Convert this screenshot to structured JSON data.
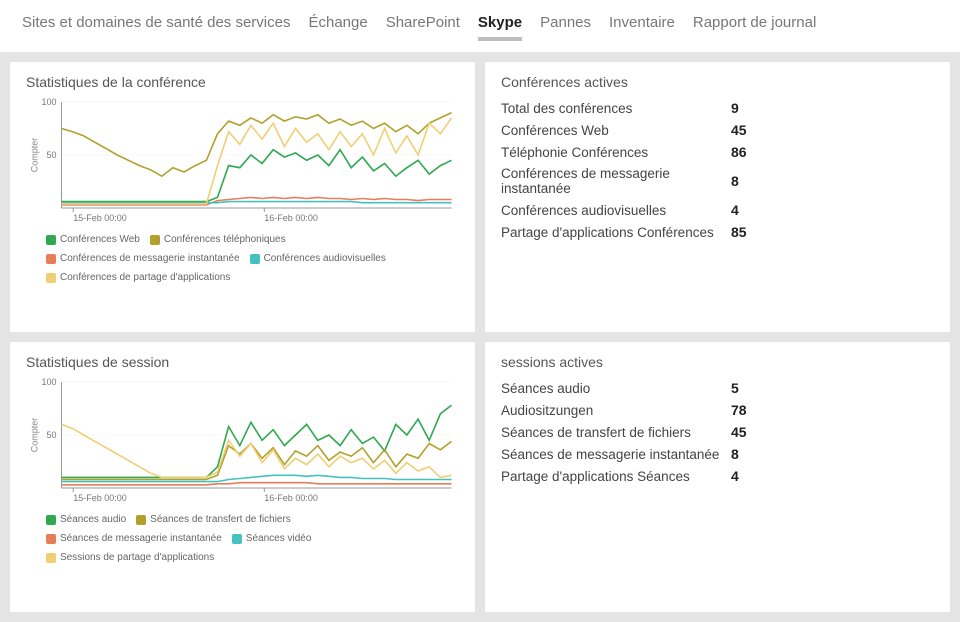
{
  "tabs": [
    {
      "label": "Sites et domaines de santé des services",
      "active": false
    },
    {
      "label": "Échange",
      "active": false
    },
    {
      "label": "SharePoint",
      "active": false
    },
    {
      "label": "Skype",
      "active": true
    },
    {
      "label": "Pannes",
      "active": false
    },
    {
      "label": "Inventaire",
      "active": false
    },
    {
      "label": "Rapport de journal",
      "active": false
    }
  ],
  "chart1": {
    "title": "Statistiques de la conférence",
    "type": "line",
    "ylabel": "Compter",
    "ylim": [
      0,
      100
    ],
    "ytick_step": 50,
    "xticks": [
      "15-Feb 00:00",
      "16-Feb 00:00"
    ],
    "xtick_positions": [
      0.03,
      0.52
    ],
    "grid_color": "#cfcfcf",
    "background_color": "#ffffff",
    "axis_fontsize": 9,
    "series": [
      {
        "name": "Conférences Web",
        "color": "#2fa84f",
        "values": [
          6,
          6,
          6,
          6,
          6,
          6,
          6,
          6,
          6,
          6,
          6,
          6,
          6,
          6,
          10,
          40,
          38,
          50,
          42,
          55,
          48,
          52,
          45,
          50,
          40,
          55,
          38,
          48,
          35,
          42,
          30,
          38,
          45,
          32,
          40,
          45
        ]
      },
      {
        "name": "Conférences téléphoniques",
        "color": "#b1a12a",
        "values": [
          75,
          72,
          68,
          62,
          56,
          50,
          45,
          40,
          36,
          30,
          38,
          34,
          40,
          45,
          70,
          82,
          78,
          85,
          80,
          88,
          82,
          86,
          84,
          88,
          80,
          84,
          78,
          82,
          75,
          80,
          72,
          78,
          70,
          80,
          85,
          90
        ]
      },
      {
        "name": "Conférences de messagerie instantanée",
        "color": "#e67e5a",
        "values": [
          3,
          3,
          3,
          3,
          3,
          3,
          3,
          3,
          3,
          3,
          3,
          3,
          3,
          3,
          7,
          8,
          9,
          10,
          9,
          10,
          9,
          10,
          9,
          10,
          9,
          9,
          8,
          9,
          8,
          9,
          8,
          8,
          7,
          8,
          8,
          8
        ]
      },
      {
        "name": "Conférences audiovisuelles",
        "color": "#45c1c1",
        "values": [
          5,
          5,
          5,
          5,
          5,
          5,
          5,
          5,
          5,
          5,
          5,
          5,
          5,
          5,
          5,
          6,
          6,
          6,
          6,
          6,
          6,
          6,
          6,
          6,
          6,
          6,
          6,
          5,
          5,
          5,
          5,
          5,
          5,
          5,
          5,
          5
        ]
      },
      {
        "name": "Conférences de partage d'applications",
        "color": "#f0ce74",
        "values": [
          4,
          4,
          4,
          4,
          4,
          4,
          4,
          4,
          4,
          4,
          4,
          4,
          4,
          4,
          40,
          72,
          60,
          78,
          65,
          80,
          58,
          75,
          62,
          70,
          55,
          72,
          58,
          70,
          50,
          75,
          52,
          68,
          50,
          80,
          70,
          85
        ]
      }
    ]
  },
  "stats1": {
    "title": "Conférences actives",
    "rows": [
      {
        "label": "Total des conférences",
        "value": "9"
      },
      {
        "label": "Conférences Web",
        "value": "45"
      },
      {
        "label": "Téléphonie Conférences",
        "value": "86"
      },
      {
        "label": "Conférences de messagerie instantanée",
        "value": "8"
      },
      {
        "label": "Conférences audiovisuelles",
        "value": "4"
      },
      {
        "label": "Partage d'applications Conférences",
        "value": "85"
      }
    ]
  },
  "chart2": {
    "title": "Statistiques de session",
    "type": "line",
    "ylabel": "Compter",
    "ylim": [
      0,
      100
    ],
    "ytick_step": 50,
    "xticks": [
      "15-Feb 00:00",
      "16-Feb 00:00"
    ],
    "xtick_positions": [
      0.03,
      0.52
    ],
    "grid_color": "#cfcfcf",
    "background_color": "#ffffff",
    "axis_fontsize": 9,
    "series": [
      {
        "name": "Séances audio",
        "color": "#2fa84f",
        "values": [
          10,
          10,
          10,
          10,
          10,
          10,
          10,
          10,
          10,
          10,
          10,
          10,
          10,
          10,
          20,
          58,
          40,
          62,
          45,
          55,
          40,
          50,
          60,
          45,
          50,
          40,
          55,
          42,
          48,
          35,
          60,
          50,
          65,
          45,
          70,
          78
        ]
      },
      {
        "name": "Séances de transfert de fichiers",
        "color": "#b1a12a",
        "values": [
          8,
          8,
          8,
          8,
          8,
          8,
          8,
          8,
          8,
          8,
          8,
          8,
          8,
          8,
          12,
          40,
          32,
          42,
          28,
          38,
          22,
          35,
          30,
          40,
          26,
          34,
          30,
          38,
          24,
          36,
          20,
          32,
          28,
          42,
          36,
          44
        ]
      },
      {
        "name": "Séances de messagerie instantanée",
        "color": "#e67e5a",
        "values": [
          3,
          3,
          3,
          3,
          3,
          3,
          3,
          3,
          3,
          3,
          3,
          3,
          3,
          3,
          4,
          4,
          5,
          5,
          5,
          5,
          5,
          5,
          5,
          4,
          4,
          4,
          4,
          4,
          4,
          4,
          4,
          4,
          4,
          4,
          4,
          4
        ]
      },
      {
        "name": "Séances vidéo",
        "color": "#45c1c1",
        "values": [
          6,
          6,
          6,
          6,
          6,
          6,
          6,
          6,
          6,
          6,
          6,
          6,
          6,
          6,
          6,
          8,
          9,
          10,
          11,
          12,
          12,
          12,
          11,
          12,
          11,
          10,
          10,
          9,
          9,
          9,
          8,
          8,
          8,
          8,
          8,
          8
        ]
      },
      {
        "name": "Sessions de partage d'applications",
        "color": "#f0ce74",
        "values": [
          60,
          56,
          50,
          44,
          38,
          32,
          26,
          20,
          14,
          10,
          10,
          10,
          10,
          10,
          15,
          45,
          30,
          42,
          24,
          36,
          18,
          28,
          22,
          32,
          20,
          30,
          24,
          28,
          18,
          26,
          14,
          24,
          16,
          20,
          10,
          12
        ]
      }
    ]
  },
  "stats2": {
    "title": "sessions actives",
    "rows": [
      {
        "label": "Séances audio",
        "value": "5"
      },
      {
        "label": "Audiositzungen",
        "value": "78"
      },
      {
        "label": "Séances de transfert de fichiers",
        "value": "45"
      },
      {
        "label": "Séances de messagerie instantanée",
        "value": "8"
      },
      {
        "label": "Partage d'applications Séances",
        "value": "4"
      }
    ]
  }
}
